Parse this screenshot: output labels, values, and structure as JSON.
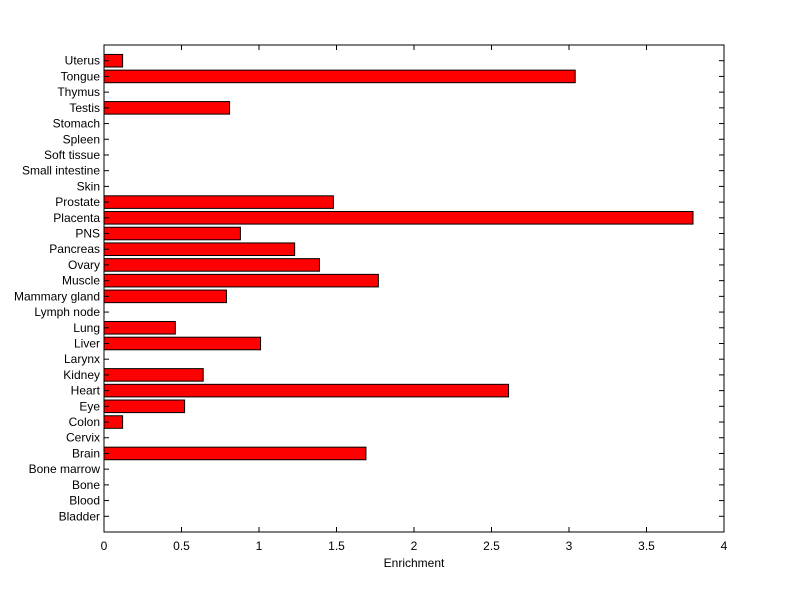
{
  "chart_data": {
    "type": "bar",
    "orientation": "horizontal",
    "title": "",
    "xlabel": "Enrichment",
    "ylabel": "",
    "xlim": [
      0,
      4
    ],
    "x_ticks": [
      0,
      0.5,
      1,
      1.5,
      2,
      2.5,
      3,
      3.5,
      4
    ],
    "x_tick_labels": [
      "0",
      "0.5",
      "1",
      "1.5",
      "2",
      "2.5",
      "3",
      "3.5",
      "4"
    ],
    "grid": false,
    "legend": "none",
    "bar_color": "#ff0000",
    "bar_edge_color": "#000000",
    "categories": [
      "Bladder",
      "Blood",
      "Bone",
      "Bone marrow",
      "Brain",
      "Cervix",
      "Colon",
      "Eye",
      "Heart",
      "Kidney",
      "Larynx",
      "Liver",
      "Lung",
      "Lymph node",
      "Mammary gland",
      "Muscle",
      "Ovary",
      "Pancreas",
      "PNS",
      "Placenta",
      "Prostate",
      "Skin",
      "Small intestine",
      "Soft tissue",
      "Spleen",
      "Stomach",
      "Testis",
      "Thymus",
      "Tongue",
      "Uterus"
    ],
    "values": [
      0,
      0,
      0,
      0,
      1.69,
      0,
      0.12,
      0.52,
      2.61,
      0.64,
      0,
      1.01,
      0.46,
      0,
      0.79,
      1.77,
      1.39,
      1.23,
      0.88,
      3.8,
      1.48,
      0,
      0,
      0,
      0,
      0,
      0.81,
      0,
      3.04,
      0.12
    ]
  }
}
